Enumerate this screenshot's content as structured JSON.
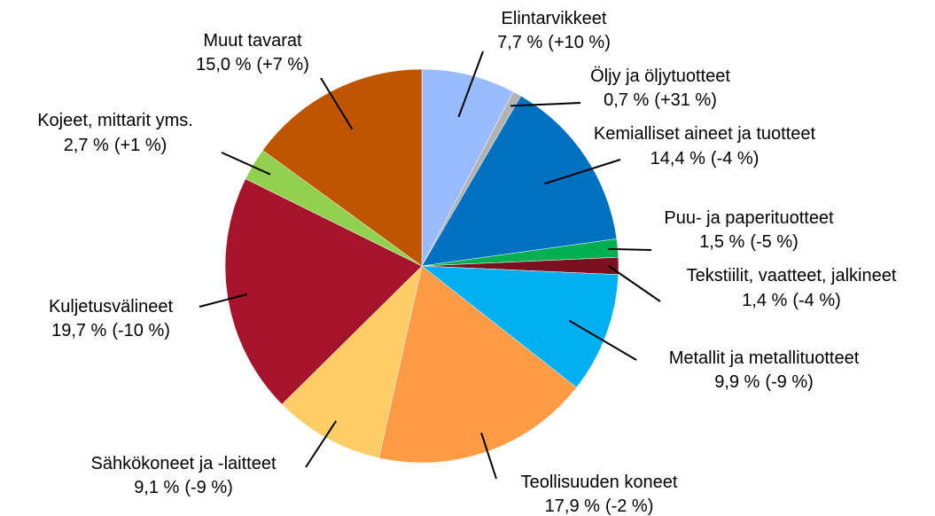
{
  "chart_data": {
    "type": "pie",
    "categories": [
      "Elintarvikkeet",
      "Öljy ja öljytuotteet",
      "Kemialliset aineet ja tuotteet",
      "Puu- ja paperituotteet",
      "Tekstiilit, vaatteet, jalkineet",
      "Metallit ja metallituotteet",
      "Teollisuuden koneet",
      "Sähkökoneet ja -laitteet",
      "Kuljetusvälineet",
      "Kojeet, mittarit yms.",
      "Muut tavarat"
    ],
    "values": [
      7.7,
      0.7,
      14.4,
      1.5,
      1.4,
      9.9,
      17.9,
      9.1,
      19.7,
      2.7,
      15.0
    ],
    "value_labels": [
      "7,7 %",
      "0,7 %",
      "14,4 %",
      "1,5 %",
      "1,4 %",
      "9,9 %",
      "17,9 %",
      "9,1 %",
      "19,7 %",
      "2,7 %",
      "15,0 %"
    ],
    "changes": [
      10,
      31,
      -4,
      -5,
      -4,
      -9,
      -2,
      -9,
      -10,
      1,
      7
    ],
    "change_labels": [
      "(+10 %)",
      "(+31 %)",
      "(-4 %)",
      "(-5 %)",
      "(-4 %)",
      "(-9 %)",
      "(-2 %)",
      "(-9 %)",
      "(-10 %)",
      "(+1 %)",
      "(+7 %)"
    ],
    "colors": [
      "#99bbff",
      "#b3b3b3",
      "#0070c0",
      "#00b050",
      "#7b1020",
      "#00b0f0",
      "#ff9a45",
      "#ffcc66",
      "#a6142c",
      "#92d050",
      "#c05500"
    ]
  }
}
